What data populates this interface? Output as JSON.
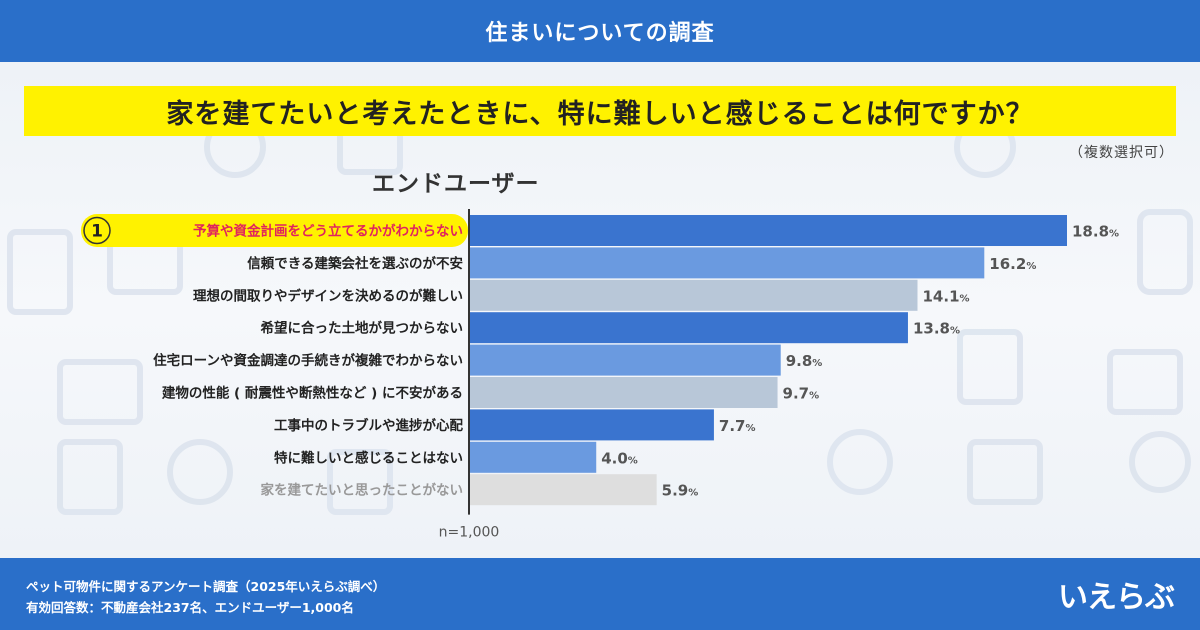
{
  "header": {
    "title": "住まいについての調査"
  },
  "question": {
    "text": "家を建てたいと考えたときに、特に難しいと感じることは何ですか？"
  },
  "note": "（複数選択可）",
  "footer": {
    "source": "ペット可物件に関するアンケート調査（2025年いえらぶ調べ）",
    "respondents": "有効回答数：不動産会社237名、エンドユーザー1,000名",
    "logo": "いえらぶ"
  },
  "chart_data": {
    "type": "bar",
    "orientation": "horizontal",
    "title": "エンドユーザー",
    "sample": "n=1,000",
    "unit": "%",
    "rank_badge": "1",
    "categories": [
      "予算や資金計画をどう立てるかがわからない",
      "信頼できる建築会社を選ぶのが不安",
      "理想の間取りやデザインを決めるのが難しい",
      "希望に合った土地が見つからない",
      "住宅ローンや資金調達の手続きが複雑でわからない",
      "建物の性能 ( 耐震性や断熱性など ) に不安がある",
      "工事中のトラブルや進捗が心配",
      "特に難しいと感じることはない",
      "家を建てたいと思ったことがない"
    ],
    "values": [
      18.8,
      16.2,
      14.1,
      13.8,
      9.8,
      9.7,
      7.7,
      4.0,
      5.9
    ],
    "value_labels": [
      "18.8",
      "16.2",
      "14.1",
      "13.8",
      "9.8",
      "9.7",
      "7.7",
      "4.0",
      "5.9"
    ],
    "colors": [
      "#3a74cf",
      "#6a9ae0",
      "#b8c7d8",
      "#3a74cf",
      "#6a9ae0",
      "#b8c7d8",
      "#3a74cf",
      "#6a9ae0",
      "#dedede"
    ],
    "label_colors": [
      "#e0245e",
      "#222222",
      "#222222",
      "#222222",
      "#222222",
      "#222222",
      "#222222",
      "#222222",
      "#999999"
    ],
    "xlim": [
      0,
      18.8
    ]
  }
}
